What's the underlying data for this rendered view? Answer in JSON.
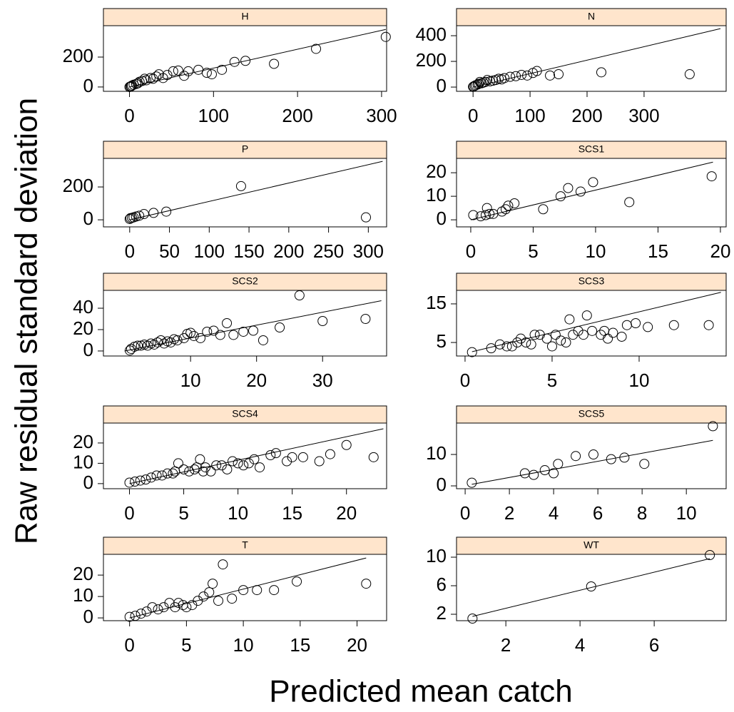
{
  "xlabel": "Predicted mean catch",
  "ylabel": "Raw residual standard deviation",
  "chart_data": [
    {
      "type": "scatter",
      "title": "H",
      "xlim": [
        -31,
        306
      ],
      "ylim": [
        -29,
        410
      ],
      "xticks": [
        0,
        100,
        200,
        300
      ],
      "yticks": [
        0,
        200
      ],
      "x": [
        305,
        222,
        172,
        138,
        125,
        110,
        98,
        92,
        82,
        70,
        65,
        58,
        52,
        45,
        40,
        35,
        32,
        28,
        25,
        20,
        18,
        15,
        12,
        10,
        8,
        5,
        3,
        2,
        1,
        0
      ],
      "y": [
        335,
        255,
        155,
        175,
        168,
        115,
        85,
        95,
        115,
        105,
        75,
        110,
        105,
        80,
        60,
        85,
        70,
        55,
        60,
        45,
        55,
        40,
        35,
        25,
        20,
        15,
        10,
        5,
        3,
        0
      ],
      "fit": {
        "x": [
          0,
          305
        ],
        "y": [
          0,
          385
        ]
      }
    },
    {
      "type": "scatter",
      "title": "N",
      "xlim": [
        -29,
        444
      ],
      "ylim": [
        -33,
        478
      ],
      "xticks": [
        0,
        100,
        200,
        300
      ],
      "yticks": [
        0,
        200,
        400
      ],
      "x": [
        380,
        225,
        150,
        135,
        112,
        105,
        95,
        85,
        75,
        65,
        55,
        50,
        45,
        40,
        35,
        30,
        25,
        22,
        18,
        15,
        12,
        10,
        8,
        5,
        3,
        1,
        0
      ],
      "y": [
        100,
        115,
        100,
        90,
        125,
        110,
        90,
        95,
        85,
        80,
        70,
        60,
        65,
        55,
        50,
        45,
        55,
        40,
        35,
        30,
        40,
        25,
        20,
        15,
        10,
        5,
        2
      ],
      "fit": {
        "x": [
          0,
          434
        ],
        "y": [
          0,
          455
        ]
      }
    },
    {
      "type": "scatter",
      "title": "P",
      "xlim": [
        -33,
        323
      ],
      "ylim": [
        -43,
        374
      ],
      "xticks": [
        0,
        50,
        100,
        150,
        200,
        250,
        300
      ],
      "yticks": [
        0,
        200
      ],
      "x": [
        297,
        140,
        46,
        30,
        18,
        12,
        8,
        5,
        3,
        1,
        0
      ],
      "y": [
        15,
        205,
        50,
        42,
        35,
        25,
        20,
        15,
        12,
        10,
        5
      ],
      "fit": {
        "x": [
          0,
          318
        ],
        "y": [
          0,
          356
        ]
      }
    },
    {
      "type": "scatter",
      "title": "SCS1",
      "xlim": [
        -1.14,
        20.46
      ],
      "ylim": [
        -3,
        26.1
      ],
      "xticks": [
        0,
        5,
        10,
        15,
        20
      ],
      "yticks": [
        0,
        10,
        20
      ],
      "x": [
        19.3,
        12.7,
        9.8,
        8.8,
        7.8,
        7.2,
        5.8,
        3.5,
        3,
        2.8,
        2.5,
        1.8,
        1.5,
        1.3,
        1.2,
        0.8,
        0.2
      ],
      "y": [
        18.5,
        7.5,
        16,
        12,
        13.5,
        10,
        4.5,
        7,
        6,
        4.5,
        3.5,
        2.5,
        2.5,
        5,
        2,
        1.5,
        2
      ],
      "fit": {
        "x": [
          0,
          19.4
        ],
        "y": [
          0,
          24.5
        ]
      }
    },
    {
      "type": "scatter",
      "title": "SCS2",
      "xlim": [
        -3.2,
        39.7
      ],
      "ylim": [
        -4.7,
        56.7
      ],
      "xticks": [
        10,
        20,
        30
      ],
      "yticks": [
        0,
        20,
        40
      ],
      "x": [
        36.5,
        30,
        26.5,
        23.5,
        21,
        19.5,
        18,
        16.5,
        15.5,
        14.5,
        13.5,
        12.5,
        11.5,
        10.5,
        10,
        9.5,
        9,
        8,
        7.5,
        7,
        6.5,
        6,
        5.5,
        5,
        4.5,
        4,
        3.5,
        3,
        2.5,
        2,
        1.5,
        1,
        0.8
      ],
      "y": [
        30,
        28,
        52,
        22,
        10,
        19,
        18,
        15,
        26,
        15,
        19,
        18,
        12,
        14,
        17,
        16,
        12,
        10,
        11,
        8,
        9,
        7,
        10,
        8,
        6,
        7,
        5,
        6,
        5,
        5,
        4,
        2,
        0.5
      ],
      "fit": {
        "x": [
          0,
          38.9
        ],
        "y": [
          0,
          47
        ]
      }
    },
    {
      "type": "scatter",
      "title": "SCS3",
      "xlim": [
        -0.49,
        15
      ],
      "ylim": [
        1.5,
        18.5
      ],
      "xticks": [
        0,
        5,
        10
      ],
      "yticks": [
        5,
        15
      ],
      "x": [
        14,
        12,
        10.5,
        9.8,
        9.3,
        9,
        8.5,
        8.2,
        8,
        7.8,
        7.3,
        7,
        6.8,
        6.5,
        6.2,
        6,
        5.8,
        5.5,
        5.2,
        5,
        4.7,
        4.3,
        4,
        3.8,
        3.5,
        3.2,
        3,
        2.7,
        2.4,
        2,
        1.5,
        0.4
      ],
      "y": [
        9.5,
        9.5,
        9,
        10,
        9.5,
        6.5,
        7.5,
        6,
        8,
        7,
        8,
        12,
        7,
        8,
        7,
        11,
        5,
        5.5,
        7,
        4,
        6,
        7,
        7,
        4.5,
        5,
        6,
        5,
        4,
        4,
        4.5,
        3.5,
        2.5
      ],
      "fit": {
        "x": [
          0.4,
          14.7
        ],
        "y": [
          2.6,
          18
        ]
      }
    },
    {
      "type": "scatter",
      "title": "SCS4",
      "xlim": [
        -2.4,
        23.7
      ],
      "ylim": [
        -2.5,
        29.8
      ],
      "xticks": [
        0,
        5,
        10,
        15,
        20
      ],
      "yticks": [
        0,
        10,
        20
      ],
      "x": [
        22.5,
        20,
        18.5,
        17.5,
        16,
        15,
        14.5,
        13.5,
        13,
        12,
        11.5,
        11,
        10.5,
        10,
        9.5,
        9,
        8.5,
        8,
        7.5,
        7,
        6.8,
        6.5,
        6.2,
        6,
        5.5,
        5,
        4.5,
        4.2,
        4,
        3.5,
        3,
        2.5,
        2,
        1.5,
        1,
        0.5,
        0
      ],
      "y": [
        13,
        19,
        14.5,
        11,
        13,
        13,
        11,
        15,
        14,
        8,
        12,
        10,
        9,
        10,
        11,
        7,
        9,
        9,
        6,
        8,
        6,
        12,
        8,
        7,
        6,
        7,
        10,
        6,
        5,
        5,
        4,
        4,
        3,
        2,
        1.5,
        1,
        0.5
      ],
      "fit": {
        "x": [
          0,
          23.4
        ],
        "y": [
          0,
          27
        ]
      }
    },
    {
      "type": "scatter",
      "title": "SCS5",
      "xlim": [
        -0.39,
        11.8
      ],
      "ylim": [
        -0.9,
        20
      ],
      "xticks": [
        0,
        2,
        4,
        6,
        8,
        10
      ],
      "yticks": [
        0,
        10
      ],
      "x": [
        11.2,
        8.1,
        7.2,
        6.6,
        5.8,
        5,
        4.2,
        4,
        3.6,
        3.1,
        2.7,
        0.3
      ],
      "y": [
        19,
        7,
        9,
        8.5,
        10,
        9.5,
        7,
        4,
        5,
        3.5,
        4,
        1
      ],
      "fit": {
        "x": [
          0.3,
          11.2
        ],
        "y": [
          0.5,
          14.5
        ]
      }
    },
    {
      "type": "scatter",
      "title": "T",
      "xlim": [
        -2.3,
        22.6
      ],
      "ylim": [
        -1.3,
        29.7
      ],
      "xticks": [
        0,
        5,
        10,
        15,
        20
      ],
      "yticks": [
        0,
        10,
        20
      ],
      "x": [
        20.8,
        14.7,
        12.7,
        11.2,
        10,
        9,
        8.2,
        7.8,
        7.3,
        7,
        6.5,
        6,
        5.5,
        5,
        4.7,
        4.3,
        4,
        3.5,
        3,
        2.5,
        2,
        1.5,
        1,
        0.5,
        0
      ],
      "y": [
        16,
        17,
        13,
        13,
        13,
        9,
        25,
        8,
        16,
        12,
        10,
        8,
        6,
        5,
        6,
        7,
        5,
        7,
        5,
        4,
        5,
        3,
        2,
        1,
        0.5
      ],
      "fit": {
        "x": [
          0,
          20.8
        ],
        "y": [
          0,
          28
        ]
      }
    },
    {
      "type": "scatter",
      "title": "WT",
      "xlim": [
        0.67,
        7.94
      ],
      "ylim": [
        1.1,
        10.4
      ],
      "xticks": [
        2,
        4,
        6
      ],
      "yticks": [
        2,
        6,
        10
      ],
      "x": [
        1.1,
        4.3,
        7.5
      ],
      "y": [
        1.4,
        5.9,
        10.3
      ],
      "fit": {
        "x": [
          1.1,
          7.5
        ],
        "y": [
          1.7,
          9.8
        ]
      }
    }
  ]
}
